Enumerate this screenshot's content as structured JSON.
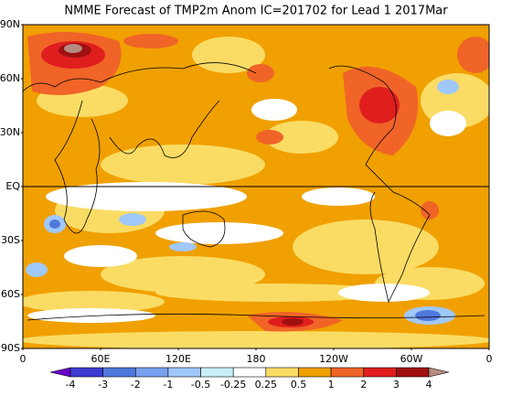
{
  "title": "NMME Forecast of TMP2m Anom IC=201702 for Lead 1 2017Mar",
  "lat_labels": [
    "90N",
    "60N",
    "30N",
    "EQ",
    "30S",
    "60S",
    "90S"
  ],
  "lon_labels": [
    "0",
    "60E",
    "120E",
    "180",
    "120W",
    "60W",
    "0"
  ],
  "colorbar": {
    "labels": [
      "-4",
      "-3",
      "-2",
      "-1",
      "-0.5",
      "-0.25",
      "0.25",
      "0.5",
      "1",
      "2",
      "3",
      "4"
    ],
    "colors": [
      "#6a00c8",
      "#3c3cd2",
      "#5078dc",
      "#78a0f0",
      "#a0c8fa",
      "#c8f0fa",
      "#ffffff",
      "#fadc64",
      "#f0a000",
      "#f06428",
      "#e01e1e",
      "#a01010",
      "#b48c82"
    ]
  }
}
